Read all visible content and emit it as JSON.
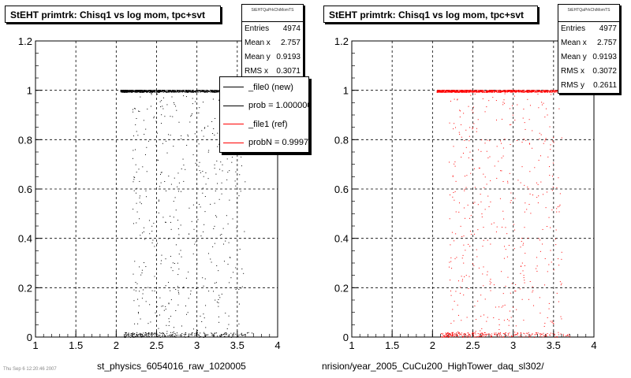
{
  "chart_data": [
    {
      "type": "scatter",
      "title": "StEHT primtrk: Chisq1 vs log mom, tpc+svt",
      "xlabel": "st_physics_6054016_raw_1020005",
      "xlim": [
        1,
        4
      ],
      "ylim": [
        0,
        1.2
      ],
      "xticks": [
        "1",
        "1.5",
        "2",
        "2.5",
        "3",
        "3.5",
        "4"
      ],
      "yticks": [
        "0",
        "0.2",
        "0.4",
        "0.6",
        "0.8",
        "1",
        "1.2"
      ],
      "grid": true,
      "marker_color": "#000000",
      "stats": {
        "name": "StEHTQaPrkChiMomTS",
        "rows": [
          {
            "label": "Entries",
            "value": "4974"
          },
          {
            "label": "Mean x",
            "value": "2.757"
          },
          {
            "label": "Mean y",
            "value": "0.9193"
          },
          {
            "label": "RMS x",
            "value": "0.3071"
          }
        ]
      },
      "legend": [
        {
          "label": "_file0 (new)",
          "color": "#000000"
        },
        {
          "label": "prob = 1.000000",
          "color": "#000000"
        },
        {
          "label": "_file1 (ref)",
          "color": "#ff0000"
        },
        {
          "label": "probN = 0.999716",
          "color": "#ff0000"
        }
      ],
      "legend_position": "top-right",
      "series": [
        {
          "cluster": "y=1 band",
          "x_range": [
            2.05,
            3.65
          ],
          "y_range": [
            0.993,
            1.002
          ],
          "count": 1100
        },
        {
          "cluster": "y=0 band",
          "x_range": [
            2.1,
            3.7
          ],
          "y_range": [
            0.0,
            0.02
          ],
          "count": 260
        },
        {
          "cluster": "sparse",
          "x_range": [
            2.2,
            3.6
          ],
          "y_range": [
            0.02,
            0.99
          ],
          "count": 420
        }
      ]
    },
    {
      "type": "scatter",
      "title": "StEHT primtrk: Chisq1 vs log mom, tpc+svt",
      "xlabel": "nrision/year_2005_CuCu200_HighTower_daq_sl302/",
      "xlim": [
        1,
        4
      ],
      "ylim": [
        0,
        1.2
      ],
      "xticks": [
        "1",
        "1.5",
        "2",
        "2.5",
        "3",
        "3.5",
        "4"
      ],
      "yticks": [
        "0",
        "0.2",
        "0.4",
        "0.6",
        "0.8",
        "1",
        "1.2"
      ],
      "grid": true,
      "marker_color": "#ff0000",
      "stats": {
        "name": "StEHTQaPrkChiMomTS",
        "rows": [
          {
            "label": "Entries",
            "value": "4977"
          },
          {
            "label": "Mean x",
            "value": "2.757"
          },
          {
            "label": "Mean y",
            "value": "0.9193"
          },
          {
            "label": "RMS x",
            "value": "0.3072"
          },
          {
            "label": "RMS y",
            "value": "0.2611"
          }
        ]
      },
      "series": [
        {
          "cluster": "y=1 band",
          "x_range": [
            2.05,
            3.65
          ],
          "y_range": [
            0.993,
            1.002
          ],
          "count": 1100
        },
        {
          "cluster": "y=0 band",
          "x_range": [
            2.1,
            3.7
          ],
          "y_range": [
            0.0,
            0.02
          ],
          "count": 260
        },
        {
          "cluster": "sparse",
          "x_range": [
            2.2,
            3.6
          ],
          "y_range": [
            0.02,
            0.99
          ],
          "count": 420
        }
      ]
    }
  ],
  "footnote": "Thu Sep 6 12:20:46 2007"
}
